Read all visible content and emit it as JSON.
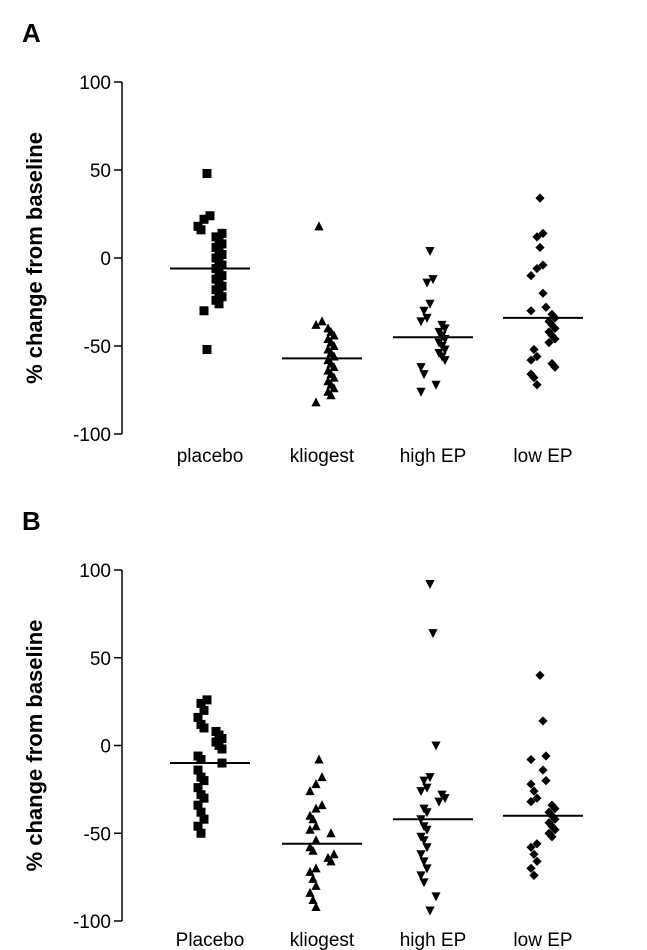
{
  "chart_data": [
    {
      "type": "scatter",
      "panel_label": "A",
      "ylabel": "% change from baseline",
      "ylim": [
        -100,
        100
      ],
      "yticks": [
        -100,
        -50,
        0,
        50,
        100
      ],
      "ytick_labels": [
        "-100",
        "-50",
        "0",
        "50",
        "100"
      ],
      "categories": [
        "placebo",
        "kliogest",
        "high EP",
        "low EP"
      ],
      "markers": [
        "square",
        "triangle-up",
        "triangle-down",
        "diamond"
      ],
      "means": [
        -6,
        -57,
        -45,
        -34
      ],
      "series": [
        {
          "values": [
            48,
            24,
            22,
            18,
            16,
            14,
            12,
            10,
            8,
            6,
            4,
            2,
            0,
            -2,
            -4,
            -6,
            -8,
            -10,
            -12,
            -14,
            -16,
            -18,
            -20,
            -22,
            -24,
            -26,
            -30,
            -52
          ]
        },
        {
          "values": [
            18,
            -36,
            -38,
            -40,
            -42,
            -44,
            -46,
            -48,
            -50,
            -52,
            -54,
            -56,
            -58,
            -60,
            -62,
            -64,
            -66,
            -68,
            -70,
            -72,
            -74,
            -76,
            -78,
            -82
          ]
        },
        {
          "values": [
            4,
            -12,
            -14,
            -26,
            -30,
            -34,
            -36,
            -38,
            -40,
            -42,
            -44,
            -46,
            -48,
            -50,
            -52,
            -54,
            -56,
            -58,
            -62,
            -66,
            -72,
            -76
          ]
        },
        {
          "values": [
            34,
            14,
            12,
            6,
            -4,
            -6,
            -10,
            -20,
            -28,
            -30,
            -32,
            -34,
            -36,
            -38,
            -40,
            -42,
            -44,
            -46,
            -48,
            -52,
            -56,
            -58,
            -60,
            -62,
            -66,
            -68,
            -72
          ]
        }
      ]
    },
    {
      "type": "scatter",
      "panel_label": "B",
      "ylabel": "% change from baseline",
      "ylim": [
        -100,
        100
      ],
      "yticks": [
        -100,
        -50,
        0,
        50,
        100
      ],
      "ytick_labels": [
        "-100",
        "-50",
        "0",
        "50",
        "100"
      ],
      "categories": [
        "Placebo",
        "kliogest",
        "high EP",
        "low EP"
      ],
      "markers": [
        "square",
        "triangle-up",
        "triangle-down",
        "diamond"
      ],
      "means": [
        -10,
        -56,
        -42,
        -40
      ],
      "series": [
        {
          "values": [
            26,
            24,
            20,
            16,
            12,
            10,
            8,
            6,
            4,
            2,
            0,
            -2,
            -6,
            -8,
            -10,
            -14,
            -18,
            -20,
            -24,
            -28,
            -30,
            -34,
            -38,
            -42,
            -46,
            -50
          ]
        },
        {
          "values": [
            -8,
            -18,
            -22,
            -26,
            -34,
            -36,
            -40,
            -42,
            -46,
            -48,
            -50,
            -54,
            -58,
            -60,
            -62,
            -64,
            -66,
            -70,
            -72,
            -76,
            -80,
            -84,
            -88,
            -92
          ]
        },
        {
          "values": [
            92,
            64,
            0,
            -18,
            -20,
            -24,
            -26,
            -28,
            -30,
            -32,
            -36,
            -38,
            -42,
            -46,
            -48,
            -52,
            -54,
            -58,
            -62,
            -66,
            -70,
            -74,
            -78,
            -86,
            -94
          ]
        },
        {
          "values": [
            40,
            14,
            -6,
            -8,
            -14,
            -20,
            -22,
            -26,
            -30,
            -32,
            -34,
            -36,
            -38,
            -40,
            -42,
            -44,
            -46,
            -48,
            -50,
            -52,
            -56,
            -58,
            -62,
            -66,
            -70,
            -74
          ]
        }
      ]
    }
  ]
}
